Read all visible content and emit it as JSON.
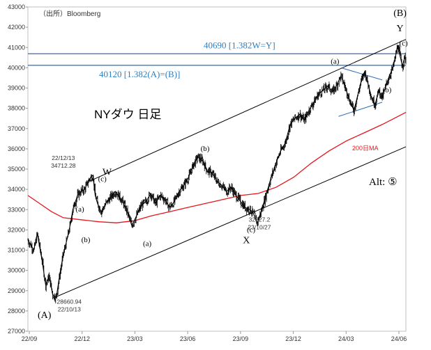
{
  "source_label": "（出所）Bloomberg",
  "title": "NYダウ 日足",
  "alt_label": "Alt: ⑤",
  "colors": {
    "price": "#000000",
    "ma": "#e8141c",
    "hline": "#2e6cb5",
    "hline_text": "#2e7fc0",
    "channel": "#000000",
    "triangle": "#2e6cb5"
  },
  "chart_data": {
    "type": "candlestick",
    "title": "NYダウ 日足",
    "x_ticks": [
      "22/09",
      "22/12",
      "23/03",
      "23/06",
      "23/09",
      "23/12",
      "24/03",
      "24/06"
    ],
    "y_range": [
      27000,
      43000
    ],
    "y_ticks": [
      27000,
      28000,
      29000,
      30000,
      31000,
      32000,
      33000,
      34000,
      35000,
      36000,
      37000,
      38000,
      39000,
      40000,
      41000,
      42000,
      43000
    ],
    "price_path": [
      {
        "t": 0,
        "v": 31500
      },
      {
        "t": 5,
        "v": 31000
      },
      {
        "t": 8,
        "v": 31800
      },
      {
        "t": 12,
        "v": 30500
      },
      {
        "t": 15,
        "v": 29300
      },
      {
        "t": 18,
        "v": 29700
      },
      {
        "t": 21,
        "v": 28800
      },
      {
        "t": 24,
        "v": 28661
      },
      {
        "t": 27,
        "v": 29800
      },
      {
        "t": 30,
        "v": 30800
      },
      {
        "t": 33,
        "v": 31500
      },
      {
        "t": 36,
        "v": 32300
      },
      {
        "t": 38,
        "v": 33000
      },
      {
        "t": 42,
        "v": 33700
      },
      {
        "t": 45,
        "v": 33900
      },
      {
        "t": 48,
        "v": 34000
      },
      {
        "t": 52,
        "v": 34500
      },
      {
        "t": 55,
        "v": 34700
      },
      {
        "t": 57,
        "v": 33700
      },
      {
        "t": 59,
        "v": 33300
      },
      {
        "t": 62,
        "v": 32900
      },
      {
        "t": 66,
        "v": 33300
      },
      {
        "t": 70,
        "v": 33600
      },
      {
        "t": 74,
        "v": 33900
      },
      {
        "t": 78,
        "v": 33600
      },
      {
        "t": 81,
        "v": 33300
      },
      {
        "t": 84,
        "v": 32900
      },
      {
        "t": 88,
        "v": 32200
      },
      {
        "t": 92,
        "v": 32700
      },
      {
        "t": 96,
        "v": 33200
      },
      {
        "t": 100,
        "v": 33400
      },
      {
        "t": 104,
        "v": 33800
      },
      {
        "t": 108,
        "v": 33300
      },
      {
        "t": 112,
        "v": 33700
      },
      {
        "t": 116,
        "v": 33500
      },
      {
        "t": 120,
        "v": 33100
      },
      {
        "t": 124,
        "v": 33400
      },
      {
        "t": 128,
        "v": 33900
      },
      {
        "t": 132,
        "v": 34200
      },
      {
        "t": 136,
        "v": 34600
      },
      {
        "t": 140,
        "v": 35200
      },
      {
        "t": 144,
        "v": 35600
      },
      {
        "t": 148,
        "v": 35400
      },
      {
        "t": 152,
        "v": 34900
      },
      {
        "t": 156,
        "v": 34800
      },
      {
        "t": 160,
        "v": 34400
      },
      {
        "t": 164,
        "v": 34200
      },
      {
        "t": 168,
        "v": 33900
      },
      {
        "t": 172,
        "v": 34100
      },
      {
        "t": 176,
        "v": 33700
      },
      {
        "t": 180,
        "v": 33400
      },
      {
        "t": 184,
        "v": 33100
      },
      {
        "t": 188,
        "v": 33000
      },
      {
        "t": 191,
        "v": 32800
      },
      {
        "t": 194,
        "v": 32330
      },
      {
        "t": 198,
        "v": 33000
      },
      {
        "t": 202,
        "v": 33800
      },
      {
        "t": 206,
        "v": 34600
      },
      {
        "t": 210,
        "v": 35300
      },
      {
        "t": 214,
        "v": 35900
      },
      {
        "t": 218,
        "v": 36300
      },
      {
        "t": 222,
        "v": 37200
      },
      {
        "t": 226,
        "v": 37500
      },
      {
        "t": 230,
        "v": 37700
      },
      {
        "t": 234,
        "v": 37400
      },
      {
        "t": 238,
        "v": 37900
      },
      {
        "t": 242,
        "v": 38300
      },
      {
        "t": 246,
        "v": 38700
      },
      {
        "t": 250,
        "v": 38900
      },
      {
        "t": 254,
        "v": 39100
      },
      {
        "t": 258,
        "v": 38800
      },
      {
        "t": 262,
        "v": 39200
      },
      {
        "t": 265,
        "v": 39600
      },
      {
        "t": 267,
        "v": 39300
      },
      {
        "t": 270,
        "v": 38800
      },
      {
        "t": 273,
        "v": 38300
      },
      {
        "t": 276,
        "v": 37900
      },
      {
        "t": 279,
        "v": 38600
      },
      {
        "t": 282,
        "v": 39300
      },
      {
        "t": 285,
        "v": 39800
      },
      {
        "t": 288,
        "v": 39200
      },
      {
        "t": 291,
        "v": 38500
      },
      {
        "t": 294,
        "v": 38200
      },
      {
        "t": 297,
        "v": 38900
      },
      {
        "t": 300,
        "v": 38500
      },
      {
        "t": 303,
        "v": 39100
      },
      {
        "t": 306,
        "v": 39600
      },
      {
        "t": 309,
        "v": 40000
      },
      {
        "t": 311,
        "v": 40500
      },
      {
        "t": 313,
        "v": 41100
      },
      {
        "t": 315,
        "v": 40600
      },
      {
        "t": 317,
        "v": 40100
      },
      {
        "t": 319,
        "v": 40500
      },
      {
        "t": 320,
        "v": 40400
      }
    ],
    "ma200_path": [
      {
        "t": 0,
        "v": 33700
      },
      {
        "t": 10,
        "v": 33300
      },
      {
        "t": 20,
        "v": 32900
      },
      {
        "t": 30,
        "v": 32600
      },
      {
        "t": 45,
        "v": 32500
      },
      {
        "t": 60,
        "v": 32400
      },
      {
        "t": 75,
        "v": 32350
      },
      {
        "t": 90,
        "v": 32450
      },
      {
        "t": 105,
        "v": 32700
      },
      {
        "t": 120,
        "v": 32900
      },
      {
        "t": 135,
        "v": 33100
      },
      {
        "t": 150,
        "v": 33300
      },
      {
        "t": 165,
        "v": 33500
      },
      {
        "t": 180,
        "v": 33700
      },
      {
        "t": 195,
        "v": 33800
      },
      {
        "t": 210,
        "v": 34100
      },
      {
        "t": 225,
        "v": 34600
      },
      {
        "t": 240,
        "v": 35300
      },
      {
        "t": 255,
        "v": 35900
      },
      {
        "t": 270,
        "v": 36400
      },
      {
        "t": 285,
        "v": 36800
      },
      {
        "t": 300,
        "v": 37200
      },
      {
        "t": 310,
        "v": 37500
      },
      {
        "t": 320,
        "v": 37800
      }
    ],
    "horizontal_lines": [
      {
        "value": 40690,
        "label": "40690 [1.382W=Y]"
      },
      {
        "value": 40120,
        "label": "40120 [1.382(A)=(B)]"
      }
    ],
    "channel": {
      "upper": [
        {
          "t": 52,
          "v": 34400
        },
        {
          "t": 320,
          "v": 41400
        }
      ],
      "lower": [
        {
          "t": 24,
          "v": 28700
        },
        {
          "t": 320,
          "v": 36100
        }
      ]
    },
    "triangle": {
      "upper": [
        {
          "t": 265,
          "v": 40000
        },
        {
          "t": 300,
          "v": 39400
        }
      ],
      "lower": [
        {
          "t": 263,
          "v": 37600
        },
        {
          "t": 300,
          "v": 38300
        }
      ]
    },
    "ma_label": "200日MA",
    "wave_labels": [
      {
        "id": "A",
        "text": "(A)",
        "t": 14,
        "v": 27650,
        "size": 14
      },
      {
        "id": "W",
        "text": "W",
        "t": 67,
        "v": 34700,
        "size": 14
      },
      {
        "id": "X",
        "text": "X",
        "t": 185,
        "v": 31350,
        "size": 14
      },
      {
        "id": "B",
        "text": "(B)",
        "t": 315,
        "v": 42550,
        "size": 14
      },
      {
        "id": "Y",
        "text": "Y",
        "t": 315,
        "v": 41800,
        "size": 14
      },
      {
        "id": "a1",
        "text": "(a)",
        "t": 44,
        "v": 32900,
        "size": 11
      },
      {
        "id": "b1",
        "text": "(b)",
        "t": 49,
        "v": 31400,
        "size": 11
      },
      {
        "id": "c1",
        "text": "(c)",
        "t": 63,
        "v": 34400,
        "size": 11
      },
      {
        "id": "a2",
        "text": "(a)",
        "t": 101,
        "v": 31200,
        "size": 11
      },
      {
        "id": "b2",
        "text": "(b)",
        "t": 150,
        "v": 35900,
        "size": 11
      },
      {
        "id": "c2",
        "text": "(c)",
        "t": 189,
        "v": 31900,
        "size": 11
      },
      {
        "id": "a3",
        "text": "(a)",
        "t": 260,
        "v": 40200,
        "size": 11
      },
      {
        "id": "b3",
        "text": "(b)",
        "t": 304,
        "v": 38800,
        "size": 11
      },
      {
        "id": "c3",
        "text": "(c)",
        "t": 318,
        "v": 41100,
        "size": 11
      }
    ],
    "annotations": [
      {
        "id": "low1",
        "lines": [
          "28660.94",
          "22/10/13"
        ],
        "t": 35,
        "v": 28350
      },
      {
        "id": "w_high",
        "lines": [
          "22/12/13",
          "34712.28"
        ],
        "t": 30,
        "v": 35450
      },
      {
        "id": "x_low",
        "lines": [
          "32327.2",
          "23/10/27"
        ],
        "t": 196,
        "v": 32400
      }
    ]
  }
}
